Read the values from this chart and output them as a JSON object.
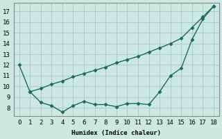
{
  "xlabel": "Humidex (Indice chaleur)",
  "bg_color": "#cce8e0",
  "line_color": "#1a6b5a",
  "grid_color": "#aacccc",
  "series1_x": [
    0,
    1,
    2,
    3,
    4,
    5,
    6,
    7,
    8,
    9,
    10,
    11,
    12,
    13,
    14,
    15,
    16,
    17,
    18
  ],
  "series1_y": [
    12.0,
    9.5,
    9.8,
    10.2,
    10.5,
    10.9,
    11.2,
    11.5,
    11.8,
    12.2,
    12.5,
    12.8,
    13.2,
    13.6,
    14.0,
    14.5,
    15.5,
    16.5,
    17.5
  ],
  "series2_x": [
    1,
    2,
    3,
    4,
    5,
    6,
    7,
    8,
    9,
    10,
    11,
    12,
    13,
    14,
    15,
    16,
    17,
    18
  ],
  "series2_y": [
    9.5,
    8.5,
    8.2,
    7.6,
    8.2,
    8.6,
    8.3,
    8.3,
    8.1,
    8.4,
    8.4,
    8.3,
    9.5,
    11.0,
    11.7,
    14.4,
    16.3,
    17.5
  ],
  "xlim": [
    -0.5,
    18.5
  ],
  "ylim": [
    7.2,
    17.8
  ],
  "yticks": [
    8,
    9,
    10,
    11,
    12,
    13,
    14,
    15,
    16,
    17
  ],
  "xticks": [
    0,
    1,
    2,
    3,
    4,
    5,
    6,
    7,
    8,
    9,
    10,
    11,
    12,
    13,
    14,
    15,
    16,
    17,
    18
  ],
  "markersize": 2.5,
  "linewidth": 1.0
}
